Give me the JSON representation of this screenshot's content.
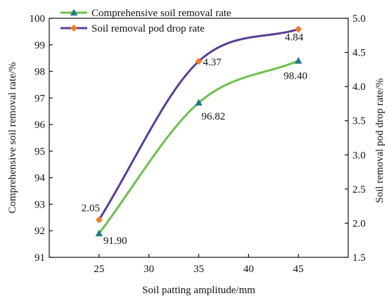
{
  "chart_data": {
    "type": "line",
    "x": [
      25,
      35,
      45
    ],
    "xlabel": "Soil patting amplitude/mm",
    "xlim": [
      20,
      50
    ],
    "xticks": [
      25,
      30,
      35,
      40,
      45
    ],
    "ylabel": "Comprehensive soil removal rate/%",
    "ylim": [
      91,
      100
    ],
    "yticks": [
      91,
      92,
      93,
      94,
      95,
      96,
      97,
      98,
      99,
      100
    ],
    "y2label": "Soil removal pod drop rate/%",
    "y2lim": [
      1.5,
      5.0
    ],
    "y2ticks": [
      "1.5",
      "2.0",
      "2.5",
      "3.0",
      "3.5",
      "4.0",
      "4.5",
      "5.0"
    ],
    "legend_position": "top-left",
    "grid": false,
    "series": [
      {
        "name": "Comprehensive soil removal rate",
        "axis": "left",
        "values": [
          91.9,
          96.82,
          98.4
        ],
        "labels": [
          "91.90",
          "96.82",
          "98.40"
        ],
        "color": "#6cc04a",
        "marker": "triangle",
        "marker_color": "#1f7a8c"
      },
      {
        "name": "Soil removal pod drop rate",
        "axis": "right",
        "values": [
          2.05,
          4.37,
          4.84
        ],
        "labels": [
          "2.05",
          "4.37",
          "4.84"
        ],
        "color": "#5a3e94",
        "marker": "diamond",
        "marker_color": "#f47c20"
      }
    ]
  }
}
